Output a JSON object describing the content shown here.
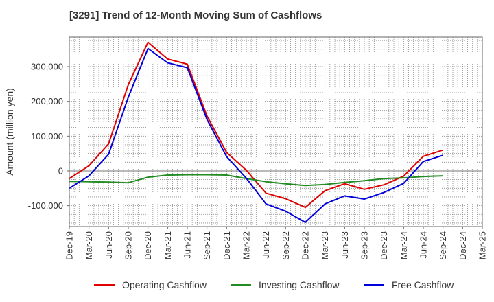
{
  "chart_data": {
    "type": "line",
    "title": "[3291]  Trend of 12-Month Moving Sum of Cashflows",
    "xlabel": "",
    "ylabel": "Amount (million yen)",
    "categories": [
      "Dec-19",
      "Mar-20",
      "Jun-20",
      "Sep-20",
      "Dec-20",
      "Mar-21",
      "Jun-21",
      "Sep-21",
      "Dec-21",
      "Mar-22",
      "Jun-22",
      "Sep-22",
      "Dec-22",
      "Mar-23",
      "Jun-23",
      "Sep-23",
      "Dec-23",
      "Mar-24",
      "Jun-24",
      "Sep-24",
      "Dec-24",
      "Mar-25"
    ],
    "ylim": [
      -160000,
      385000
    ],
    "yticks": [
      -100000,
      0,
      100000,
      200000,
      300000
    ],
    "ytick_labels": [
      "-100,000",
      "0",
      "100,000",
      "200,000",
      "300,000"
    ],
    "grid": true,
    "legend_position": "bottom",
    "series": [
      {
        "name": "Operating Cashflow",
        "color": "#e00000",
        "values": [
          -22000,
          15000,
          78000,
          248000,
          370000,
          322000,
          307000,
          158000,
          53000,
          2000,
          -64000,
          -80000,
          -105000,
          -57000,
          -37000,
          -53000,
          -40000,
          -15000,
          42000,
          60000,
          null,
          null
        ]
      },
      {
        "name": "Investing Cashflow",
        "color": "#228b22",
        "values": [
          -30000,
          -31000,
          -32000,
          -34000,
          -18000,
          -12000,
          -11000,
          -11000,
          -12000,
          -22000,
          -31000,
          -37000,
          -42000,
          -39000,
          -33000,
          -28000,
          -22000,
          -20000,
          -16000,
          -14000,
          null,
          null
        ]
      },
      {
        "name": "Free Cashflow",
        "color": "#0000dd",
        "values": [
          -50000,
          -14000,
          48000,
          212000,
          352000,
          311000,
          297000,
          148000,
          41000,
          -21000,
          -95000,
          -116000,
          -148000,
          -95000,
          -72000,
          -81000,
          -62000,
          -36000,
          27000,
          45000,
          null,
          null
        ]
      }
    ]
  }
}
